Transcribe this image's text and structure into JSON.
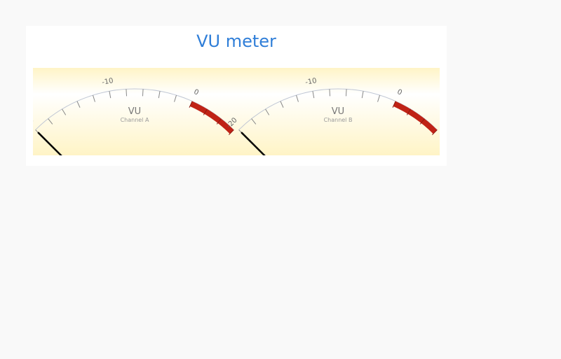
{
  "chart_title": "VU meter",
  "chart_data": {
    "type": "gauge",
    "title": "VU meter",
    "min": -20,
    "max": 6,
    "tick_labels": [
      "-20",
      "-10",
      "0"
    ],
    "tick_values": [
      -20,
      -10,
      0
    ],
    "red_band": [
      0,
      6
    ],
    "colors": {
      "background_gradient": [
        "#fff4c6",
        "#ffffff",
        "#fff4c6"
      ],
      "arc": "#bfc6d4",
      "tick": "#888888",
      "red_band": "#c02316",
      "needle": "#000000",
      "title": "#2f7ed8",
      "panel_label": "#777777"
    },
    "panes": [
      {
        "unit_label": "VU",
        "channel_label": "Channel A",
        "value": -20
      },
      {
        "unit_label": "VU",
        "channel_label": "Channel B",
        "value": -20
      }
    ]
  }
}
